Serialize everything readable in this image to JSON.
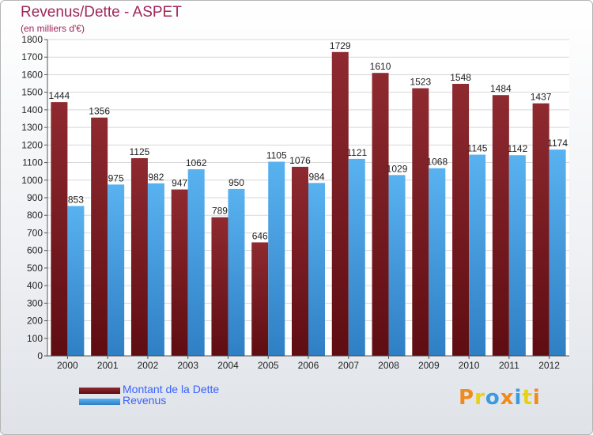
{
  "chart_data": {
    "type": "bar",
    "title": "Revenus/Dette - ASPET",
    "subtitle": "(en milliers d'€)",
    "categories": [
      "2000",
      "2001",
      "2002",
      "2003",
      "2004",
      "2005",
      "2006",
      "2007",
      "2008",
      "2009",
      "2010",
      "2011",
      "2012"
    ],
    "series": [
      {
        "name": "Montant de la Dette",
        "color": "#7a1c22",
        "values": [
          1444,
          1356,
          1125,
          947,
          789,
          646,
          1076,
          1729,
          1610,
          1523,
          1548,
          1484,
          1437
        ]
      },
      {
        "name": "Revenus",
        "color": "#4da6e8",
        "values": [
          853,
          975,
          982,
          1062,
          950,
          1105,
          984,
          1121,
          1029,
          1068,
          1145,
          1142,
          1174
        ]
      }
    ],
    "ylim": [
      0,
      1800
    ],
    "yticks": [
      0,
      100,
      200,
      300,
      400,
      500,
      600,
      700,
      800,
      900,
      1000,
      1100,
      1200,
      1300,
      1400,
      1500,
      1600,
      1700,
      1800
    ],
    "grid": true,
    "legend_position": "bottom-left"
  },
  "logo": {
    "text": "Proxiti",
    "colors": [
      "#f08a1c",
      "#e8d014",
      "#3a9be0",
      "#f08a1c",
      "#3a9be0",
      "#e8d014",
      "#f08a1c"
    ]
  }
}
